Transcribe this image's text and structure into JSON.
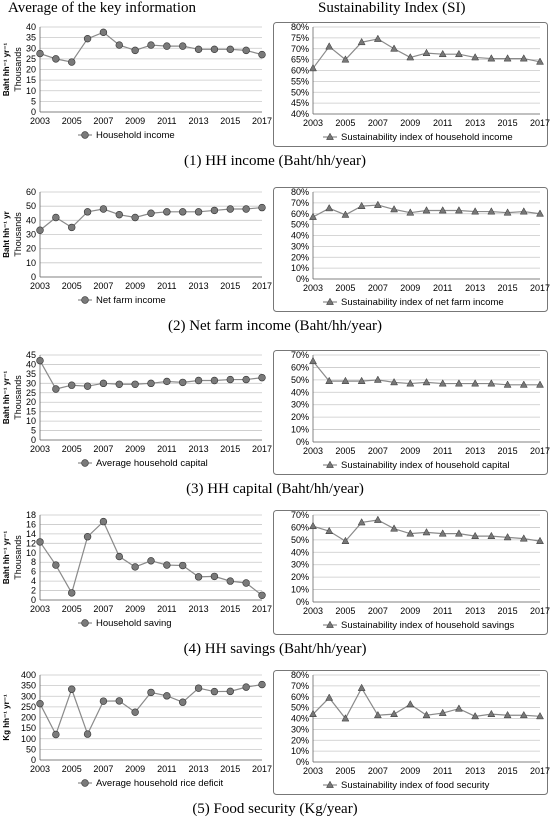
{
  "headers": {
    "left": "Average of the key information",
    "right": "Sustainability Index (SI)"
  },
  "sections": [
    {
      "caption": "(1) HH income (Baht/hh/year)",
      "left": {
        "type": "line",
        "marker": "circle",
        "x": [
          2003,
          2004,
          2005,
          2006,
          2007,
          2008,
          2009,
          2010,
          2011,
          2012,
          2013,
          2014,
          2015,
          2016,
          2017
        ],
        "series": [
          {
            "name": "Household income",
            "values": [
              27.5,
              25,
              23.5,
              34.5,
              37.5,
              31.5,
              29,
              31.5,
              31,
              31,
              29.5,
              29.5,
              29.5,
              29,
              27
            ]
          }
        ],
        "ylabel": "Baht hh⁻¹ yr⁻¹",
        "yunit": "Thousands",
        "ylim": [
          0,
          40
        ],
        "yticks": [
          0,
          5,
          10,
          15,
          20,
          25,
          30,
          35,
          40
        ],
        "xticks": [
          2003,
          2005,
          2007,
          2009,
          2011,
          2013,
          2015,
          2017
        ]
      },
      "right": {
        "type": "line",
        "marker": "triangle",
        "x": [
          2003,
          2004,
          2005,
          2006,
          2007,
          2008,
          2009,
          2010,
          2011,
          2012,
          2013,
          2014,
          2015,
          2016,
          2017
        ],
        "series": [
          {
            "name": "Sustainability index of household income",
            "values": [
              61,
              71,
              65,
              73,
              74.5,
              70,
              66,
              68,
              67.5,
              67.5,
              66,
              65.5,
              65.5,
              65.5,
              64
            ]
          }
        ],
        "ylim": [
          40,
          80
        ],
        "yticks": [
          40,
          45,
          50,
          55,
          60,
          65,
          70,
          75,
          80
        ],
        "percent": true,
        "xticks": [
          2003,
          2005,
          2007,
          2009,
          2011,
          2013,
          2015,
          2017
        ]
      }
    },
    {
      "caption": "(2) Net farm income (Baht/hh/year)",
      "left": {
        "type": "line",
        "marker": "circle",
        "x": [
          2003,
          2004,
          2005,
          2006,
          2007,
          2008,
          2009,
          2010,
          2011,
          2012,
          2013,
          2014,
          2015,
          2016,
          2017
        ],
        "series": [
          {
            "name": "Net farm income",
            "values": [
              33,
              42,
              35,
              46,
              48,
              44,
              42,
              45,
              46,
              46,
              46,
              47,
              48,
              48,
              49
            ]
          }
        ],
        "ylabel": "Baht hh⁻¹ yr",
        "yunit": "Thousands",
        "ylim": [
          0,
          60
        ],
        "yticks": [
          0,
          10,
          20,
          30,
          40,
          50,
          60
        ],
        "xticks": [
          2003,
          2005,
          2007,
          2009,
          2011,
          2013,
          2015,
          2017
        ]
      },
      "right": {
        "type": "line",
        "marker": "triangle",
        "x": [
          2003,
          2004,
          2005,
          2006,
          2007,
          2008,
          2009,
          2010,
          2011,
          2012,
          2013,
          2014,
          2015,
          2016,
          2017
        ],
        "series": [
          {
            "name": "Sustainability index of net farm income",
            "values": [
              57,
              65,
              59,
              67,
              68,
              64,
              61,
              63,
              63,
              63,
              62,
              62,
              61,
              62,
              60
            ]
          }
        ],
        "ylim": [
          0,
          80
        ],
        "yticks": [
          0,
          10,
          20,
          30,
          40,
          50,
          60,
          70,
          80
        ],
        "percent": true,
        "xticks": [
          2003,
          2005,
          2007,
          2009,
          2011,
          2013,
          2015,
          2017
        ]
      }
    },
    {
      "caption": "(3) HH capital (Baht/hh/year)",
      "left": {
        "type": "line",
        "marker": "circle",
        "x": [
          2003,
          2004,
          2005,
          2006,
          2007,
          2008,
          2009,
          2010,
          2011,
          2012,
          2013,
          2014,
          2015,
          2016,
          2017
        ],
        "series": [
          {
            "name": "Average household capital",
            "values": [
              42,
              27,
              29,
              28.5,
              30,
              29.5,
              29.5,
              30,
              31,
              30.5,
              31.5,
              31.5,
              32,
              32,
              33
            ]
          }
        ],
        "ylabel": "Baht hh⁻¹ yr⁻¹",
        "yunit": "Thousands",
        "ylim": [
          0,
          45
        ],
        "yticks": [
          0,
          5,
          10,
          15,
          20,
          25,
          30,
          35,
          40,
          45
        ],
        "xticks": [
          2003,
          2005,
          2007,
          2009,
          2011,
          2013,
          2015,
          2017
        ]
      },
      "right": {
        "type": "line",
        "marker": "triangle",
        "x": [
          2003,
          2004,
          2005,
          2006,
          2007,
          2008,
          2009,
          2010,
          2011,
          2012,
          2013,
          2014,
          2015,
          2016,
          2017
        ],
        "series": [
          {
            "name": "Sustainability index of household capital",
            "values": [
              65,
              49,
              49,
              49,
              50,
              48,
              47,
              48,
              47,
              47,
              47,
              47,
              46,
              46,
              46
            ]
          }
        ],
        "ylim": [
          0,
          70
        ],
        "yticks": [
          0,
          10,
          20,
          30,
          40,
          50,
          60,
          70
        ],
        "percent": true,
        "xticks": [
          2003,
          2005,
          2007,
          2009,
          2011,
          2013,
          2015,
          2017
        ]
      }
    },
    {
      "caption": "(4) HH savings (Baht/hh/year)",
      "left": {
        "type": "line",
        "marker": "circle",
        "x": [
          2003,
          2004,
          2005,
          2006,
          2007,
          2008,
          2009,
          2010,
          2011,
          2012,
          2013,
          2014,
          2015,
          2016,
          2017
        ],
        "series": [
          {
            "name": "Household saving",
            "values": [
              12.3,
              7.4,
              1.5,
              13.4,
              16.6,
              9.2,
              7.0,
              8.3,
              7.4,
              7.3,
              4.9,
              5.0,
              4.0,
              3.6,
              1.0
            ]
          }
        ],
        "ylabel": "Baht hh⁻¹ yr⁻¹",
        "yunit": "Thousands",
        "ylim": [
          0,
          18
        ],
        "yticks": [
          0,
          2,
          4,
          6,
          8,
          10,
          12,
          14,
          16,
          18
        ],
        "xticks": [
          2003,
          2005,
          2007,
          2009,
          2011,
          2013,
          2015,
          2017
        ]
      },
      "right": {
        "type": "line",
        "marker": "triangle",
        "x": [
          2003,
          2004,
          2005,
          2006,
          2007,
          2008,
          2009,
          2010,
          2011,
          2012,
          2013,
          2014,
          2015,
          2016,
          2017
        ],
        "series": [
          {
            "name": "Sustainability index of household savings",
            "values": [
              61,
              57,
              49,
              64,
              66,
              59,
              55,
              56,
              55,
              55,
              53,
              53,
              52,
              51,
              49
            ]
          }
        ],
        "ylim": [
          0,
          70
        ],
        "yticks": [
          0,
          10,
          20,
          30,
          40,
          50,
          60,
          70
        ],
        "percent": true,
        "xticks": [
          2003,
          2005,
          2007,
          2009,
          2011,
          2013,
          2015,
          2017
        ]
      }
    },
    {
      "caption": "(5) Food security (Kg/year)",
      "left": {
        "type": "line",
        "marker": "circle",
        "x": [
          2003,
          2004,
          2005,
          2006,
          2007,
          2008,
          2009,
          2010,
          2011,
          2012,
          2013,
          2014,
          2015,
          2016,
          2017
        ],
        "series": [
          {
            "name": "Average household rice deficit",
            "values": [
              265,
              120,
              333,
              122,
              277,
              278,
              225,
              318,
              302,
              272,
              338,
              322,
              323,
              343,
              355
            ]
          }
        ],
        "ylabel": "Kg hh⁻¹ yr⁻¹",
        "yunit": "",
        "ylim": [
          0,
          400
        ],
        "yticks": [
          0,
          50,
          100,
          150,
          200,
          250,
          300,
          350,
          400
        ],
        "xticks": [
          2003,
          2005,
          2007,
          2009,
          2011,
          2013,
          2015,
          2017
        ]
      },
      "right": {
        "type": "line",
        "marker": "triangle",
        "x": [
          2003,
          2004,
          2005,
          2006,
          2007,
          2008,
          2009,
          2010,
          2011,
          2012,
          2013,
          2014,
          2015,
          2016,
          2017
        ],
        "series": [
          {
            "name": "Sustainability index of food security",
            "values": [
              44,
              59,
              40,
              68,
              43,
              44,
              53,
              43,
              45,
              49,
              42,
              44,
              43,
              43,
              42
            ]
          }
        ],
        "ylim": [
          0,
          80
        ],
        "yticks": [
          0,
          10,
          20,
          30,
          40,
          50,
          60,
          70,
          80
        ],
        "percent": true,
        "xticks": [
          2003,
          2005,
          2007,
          2009,
          2011,
          2013,
          2015,
          2017
        ]
      }
    }
  ],
  "chart_data": [
    {
      "type": "line",
      "title": "",
      "x": [
        2003,
        2004,
        2005,
        2006,
        2007,
        2008,
        2009,
        2010,
        2011,
        2012,
        2013,
        2014,
        2015,
        2016,
        2017
      ],
      "series": [
        {
          "name": "Household income",
          "values": [
            27.5,
            25,
            23.5,
            34.5,
            37.5,
            31.5,
            29,
            31.5,
            31,
            31,
            29.5,
            29.5,
            29.5,
            29,
            27
          ]
        }
      ],
      "ylabel": "Baht hh⁻¹ yr⁻¹",
      "ylim": [
        0,
        40
      ]
    },
    {
      "type": "line",
      "title": "",
      "x": [
        2003,
        2004,
        2005,
        2006,
        2007,
        2008,
        2009,
        2010,
        2011,
        2012,
        2013,
        2014,
        2015,
        2016,
        2017
      ],
      "series": [
        {
          "name": "Sustainability index of household income",
          "values": [
            61,
            71,
            65,
            73,
            74.5,
            70,
            66,
            68,
            67.5,
            67.5,
            66,
            65.5,
            65.5,
            65.5,
            64
          ]
        }
      ],
      "ylim": [
        40,
        80
      ]
    },
    {
      "type": "line",
      "title": "",
      "x": [
        2003,
        2004,
        2005,
        2006,
        2007,
        2008,
        2009,
        2010,
        2011,
        2012,
        2013,
        2014,
        2015,
        2016,
        2017
      ],
      "series": [
        {
          "name": "Net farm income",
          "values": [
            33,
            42,
            35,
            46,
            48,
            44,
            42,
            45,
            46,
            46,
            46,
            47,
            48,
            48,
            49
          ]
        }
      ],
      "ylabel": "Baht hh⁻¹ yr",
      "ylim": [
        0,
        60
      ]
    },
    {
      "type": "line",
      "title": "",
      "x": [
        2003,
        2004,
        2005,
        2006,
        2007,
        2008,
        2009,
        2010,
        2011,
        2012,
        2013,
        2014,
        2015,
        2016,
        2017
      ],
      "series": [
        {
          "name": "Sustainability index of net farm income",
          "values": [
            57,
            65,
            59,
            67,
            68,
            64,
            61,
            63,
            63,
            63,
            62,
            62,
            61,
            62,
            60
          ]
        }
      ],
      "ylim": [
        0,
        80
      ]
    },
    {
      "type": "line",
      "title": "",
      "x": [
        2003,
        2004,
        2005,
        2006,
        2007,
        2008,
        2009,
        2010,
        2011,
        2012,
        2013,
        2014,
        2015,
        2016,
        2017
      ],
      "series": [
        {
          "name": "Average household capital",
          "values": [
            42,
            27,
            29,
            28.5,
            30,
            29.5,
            29.5,
            30,
            31,
            30.5,
            31.5,
            31.5,
            32,
            32,
            33
          ]
        }
      ],
      "ylabel": "Baht hh⁻¹ yr⁻¹",
      "ylim": [
        0,
        45
      ]
    },
    {
      "type": "line",
      "title": "",
      "x": [
        2003,
        2004,
        2005,
        2006,
        2007,
        2008,
        2009,
        2010,
        2011,
        2012,
        2013,
        2014,
        2015,
        2016,
        2017
      ],
      "series": [
        {
          "name": "Sustainability index of household capital",
          "values": [
            65,
            49,
            49,
            49,
            50,
            48,
            47,
            48,
            47,
            47,
            47,
            47,
            46,
            46,
            46
          ]
        }
      ],
      "ylim": [
        0,
        70
      ]
    },
    {
      "type": "line",
      "title": "",
      "x": [
        2003,
        2004,
        2005,
        2006,
        2007,
        2008,
        2009,
        2010,
        2011,
        2012,
        2013,
        2014,
        2015,
        2016,
        2017
      ],
      "series": [
        {
          "name": "Household saving",
          "values": [
            12.3,
            7.4,
            1.5,
            13.4,
            16.6,
            9.2,
            7.0,
            8.3,
            7.4,
            7.3,
            4.9,
            5.0,
            4.0,
            3.6,
            1.0
          ]
        }
      ],
      "ylabel": "Baht hh⁻¹ yr⁻¹",
      "ylim": [
        0,
        18
      ]
    },
    {
      "type": "line",
      "title": "",
      "x": [
        2003,
        2004,
        2005,
        2006,
        2007,
        2008,
        2009,
        2010,
        2011,
        2012,
        2013,
        2014,
        2015,
        2016,
        2017
      ],
      "series": [
        {
          "name": "Sustainability index of household savings",
          "values": [
            61,
            57,
            49,
            64,
            66,
            59,
            55,
            56,
            55,
            55,
            53,
            53,
            52,
            51,
            49
          ]
        }
      ],
      "ylim": [
        0,
        70
      ]
    },
    {
      "type": "line",
      "title": "",
      "x": [
        2003,
        2004,
        2005,
        2006,
        2007,
        2008,
        2009,
        2010,
        2011,
        2012,
        2013,
        2014,
        2015,
        2016,
        2017
      ],
      "series": [
        {
          "name": "Average household rice deficit",
          "values": [
            265,
            120,
            333,
            122,
            277,
            278,
            225,
            318,
            302,
            272,
            338,
            322,
            323,
            343,
            355
          ]
        }
      ],
      "ylabel": "Kg hh⁻¹ yr⁻¹",
      "ylim": [
        0,
        400
      ]
    },
    {
      "type": "line",
      "title": "",
      "x": [
        2003,
        2004,
        2005,
        2006,
        2007,
        2008,
        2009,
        2010,
        2011,
        2012,
        2013,
        2014,
        2015,
        2016,
        2017
      ],
      "series": [
        {
          "name": "Sustainability index of food security",
          "values": [
            44,
            59,
            40,
            68,
            43,
            44,
            53,
            43,
            45,
            49,
            42,
            44,
            43,
            43,
            42
          ]
        }
      ],
      "ylim": [
        0,
        80
      ]
    }
  ]
}
